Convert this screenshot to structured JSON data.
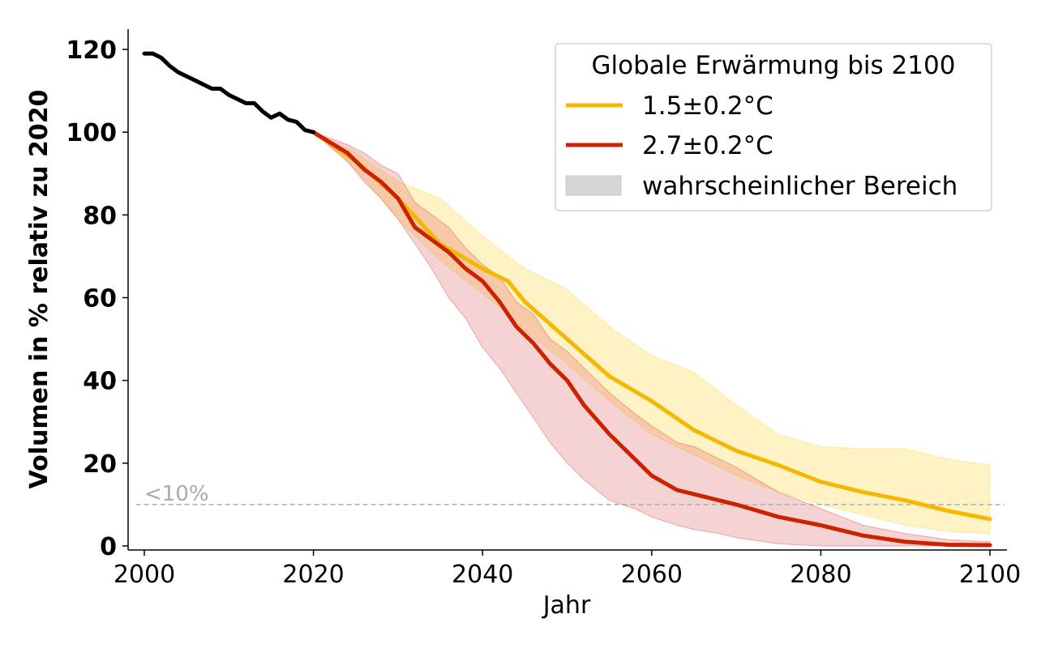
{
  "colors": {
    "history": "#000000",
    "scenario_1_5": "#f5b800",
    "scenario_2_7": "#cc2200",
    "band_1_5": "#ffd95a",
    "band_2_7": "#e06060",
    "legend_band": "#d6d6d6",
    "threshold": "#aaaaaa"
  },
  "chart_data": {
    "type": "line",
    "xlabel": "Jahr",
    "ylabel": "Volumen in % relativ zu 2020",
    "xlim": [
      1998,
      2102
    ],
    "ylim": [
      -1,
      125
    ],
    "xticks": [
      2000,
      2020,
      2040,
      2060,
      2080,
      2100
    ],
    "yticks": [
      0,
      20,
      40,
      60,
      80,
      100,
      120
    ],
    "grid": false,
    "legend": {
      "title": "Globale Erwärmung bis 2100",
      "placement": "top-right",
      "entries": [
        "1.5±0.2°C",
        "2.7±0.2°C",
        "wahrscheinlicher Bereich"
      ]
    },
    "threshold": {
      "y": 10,
      "label": "<10%"
    },
    "history": {
      "x": [
        2000,
        2001,
        2002,
        2003,
        2004,
        2005,
        2006,
        2007,
        2008,
        2009,
        2010,
        2011,
        2012,
        2013,
        2014,
        2015,
        2016,
        2017,
        2018,
        2019,
        2020
      ],
      "y": [
        119,
        119,
        118,
        116,
        114.5,
        113.5,
        112.5,
        111.5,
        110.5,
        110.5,
        109,
        108,
        107,
        107,
        105,
        103.5,
        104.5,
        103,
        102.5,
        100.5,
        100
      ]
    },
    "series": [
      {
        "name": "1.5±0.2°C",
        "x": [
          2020,
          2025,
          2030,
          2035,
          2040,
          2043,
          2045,
          2050,
          2055,
          2060,
          2065,
          2070,
          2075,
          2080,
          2085,
          2090,
          2095,
          2100
        ],
        "y": [
          100,
          93,
          84,
          73,
          67,
          64,
          59,
          50,
          41,
          35,
          28,
          23,
          19.5,
          15.5,
          13,
          11,
          8.5,
          6.5
        ],
        "lower": [
          100,
          91,
          79,
          69,
          61,
          56,
          52,
          44,
          35,
          27,
          22,
          17,
          13,
          10,
          7.5,
          5,
          3.5,
          3
        ],
        "upper": [
          100,
          95,
          88,
          84,
          75,
          70,
          67,
          62,
          53,
          46,
          42,
          34,
          27,
          24,
          23.5,
          23.5,
          21,
          19.5
        ]
      },
      {
        "name": "2.7±0.2°C",
        "x": [
          2020,
          2024,
          2026,
          2028,
          2030,
          2032,
          2034,
          2036,
          2038,
          2040,
          2042,
          2044,
          2046,
          2048,
          2050,
          2052,
          2055,
          2058,
          2060,
          2063,
          2065,
          2068,
          2070,
          2075,
          2080,
          2085,
          2090,
          2095,
          2100
        ],
        "y": [
          100,
          95,
          91,
          88,
          84,
          77,
          74,
          71,
          67,
          64,
          59,
          53,
          49,
          44,
          40,
          34,
          27,
          21,
          17,
          13.5,
          12.5,
          11,
          10,
          7,
          5,
          2.5,
          1,
          0.3,
          0.2
        ],
        "lower": [
          100,
          93,
          88,
          84,
          79,
          73,
          67,
          60,
          55,
          48,
          43,
          37,
          31,
          25,
          20,
          16,
          11,
          9,
          7,
          5,
          4,
          3,
          2,
          0.5,
          0,
          0,
          0,
          0,
          0
        ],
        "upper": [
          100,
          97,
          95,
          92,
          90,
          83,
          80,
          77,
          72,
          68,
          65,
          59,
          56,
          50,
          47,
          43,
          37,
          32,
          29,
          25,
          24,
          21,
          19,
          13,
          9,
          5,
          3,
          1.5,
          1
        ]
      }
    ]
  }
}
